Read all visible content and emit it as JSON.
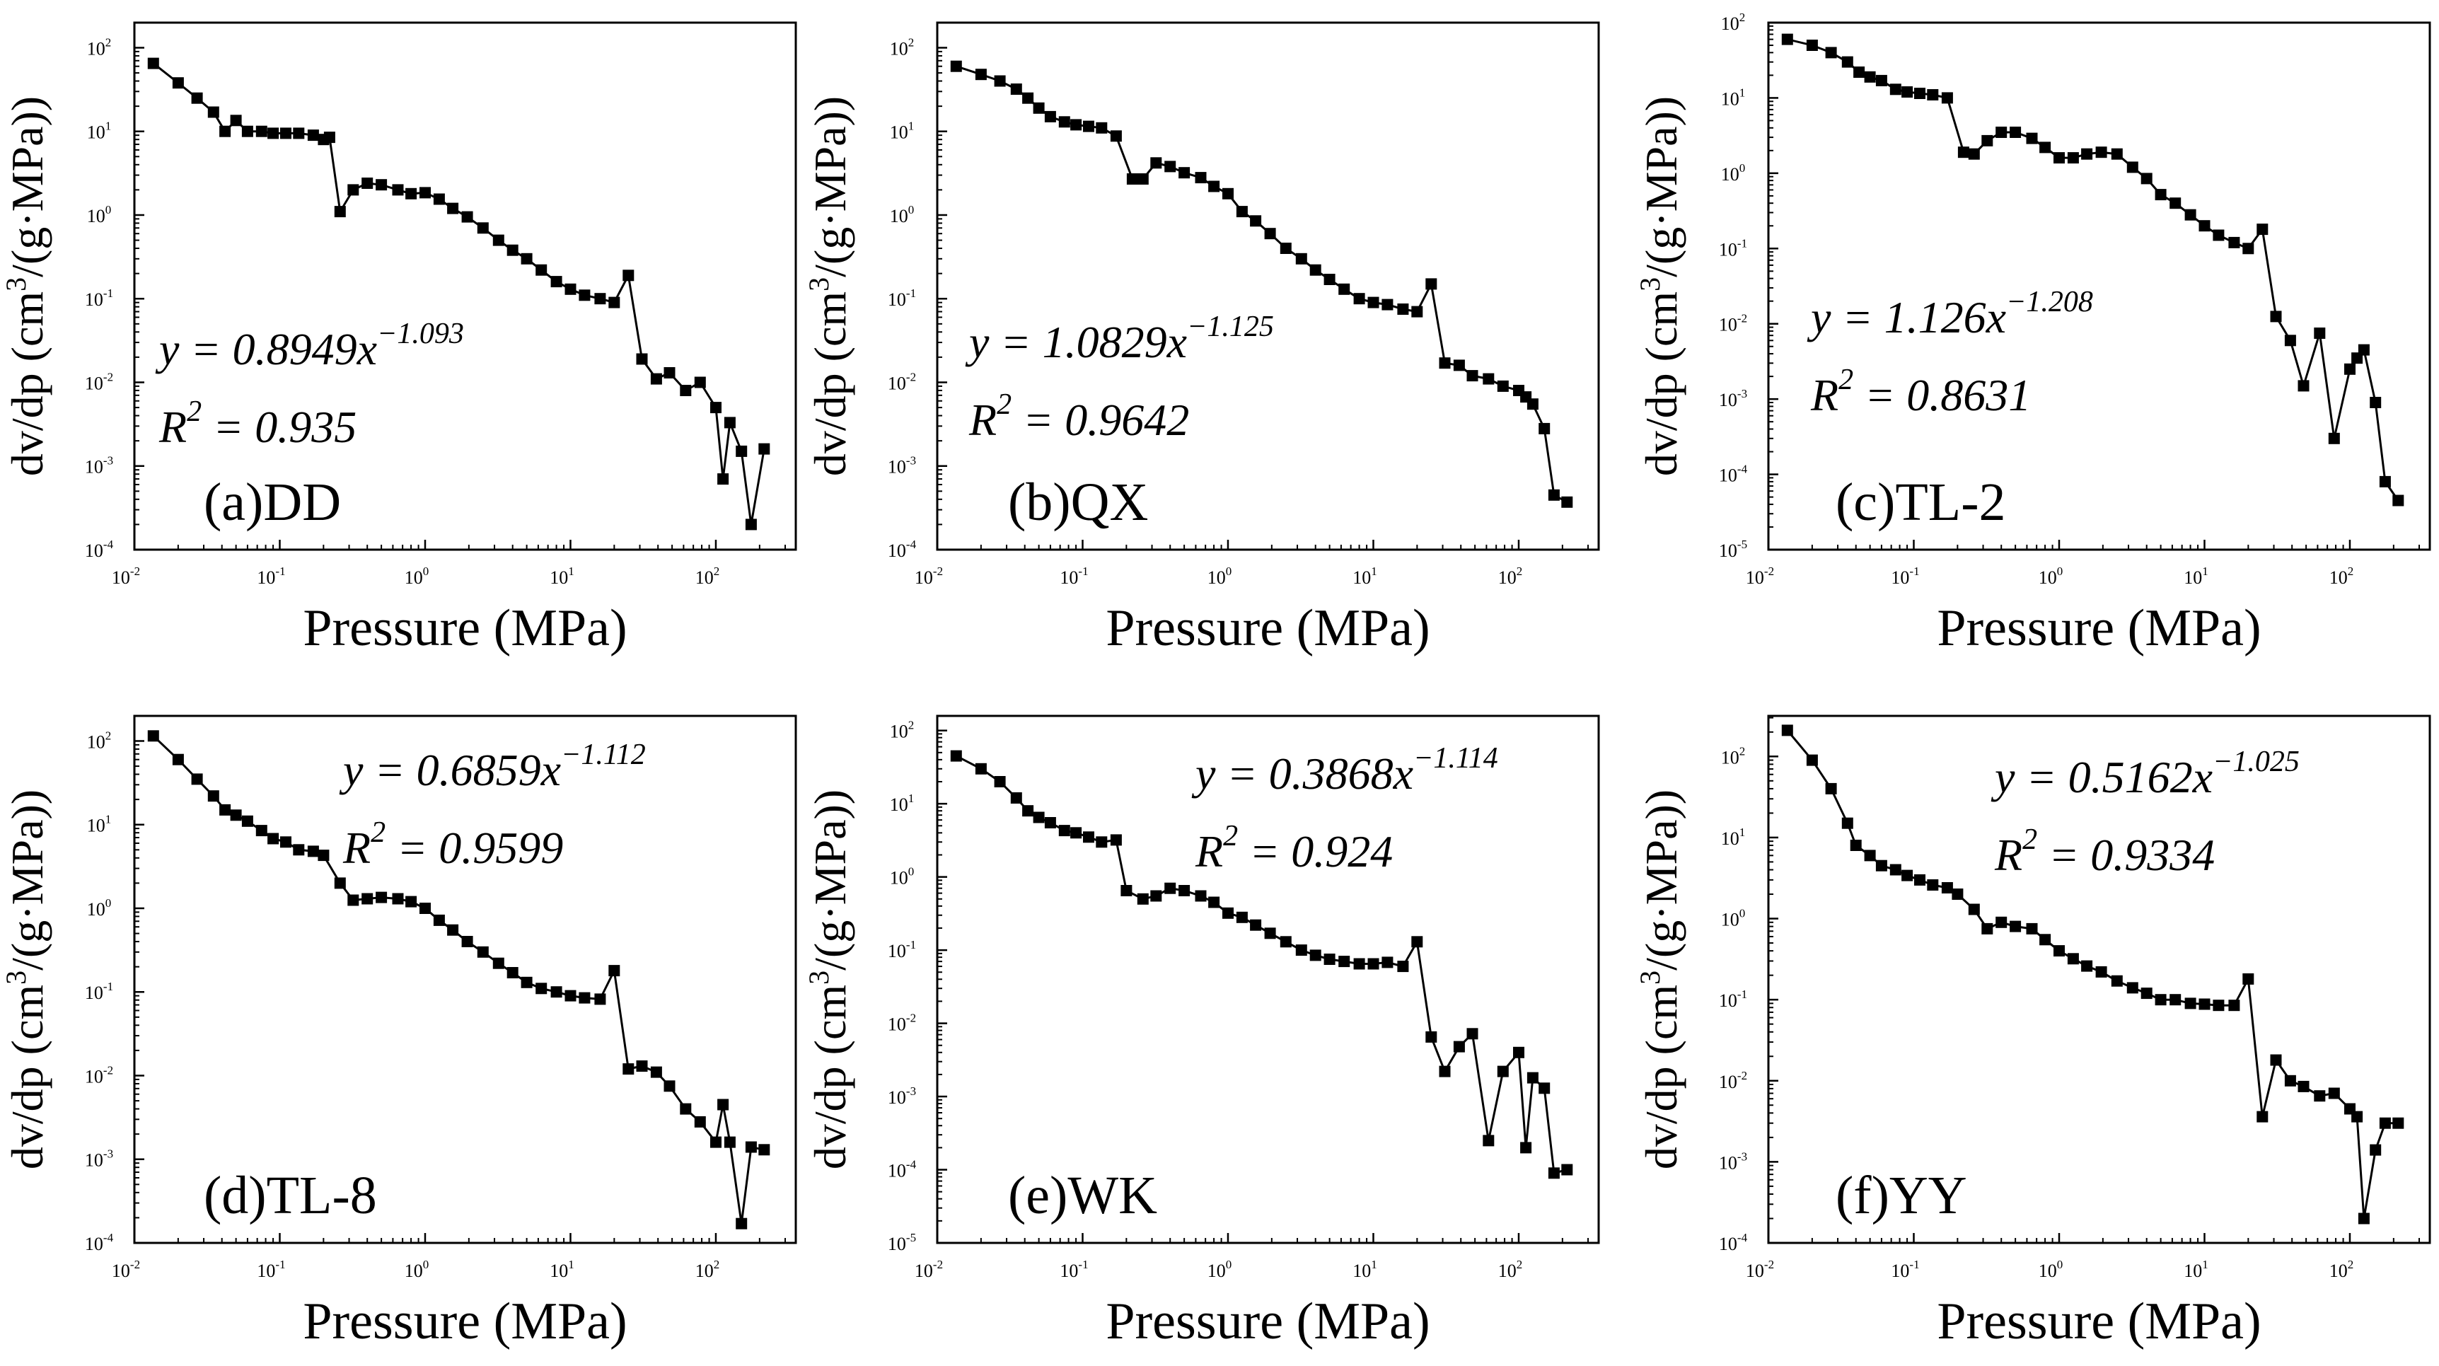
{
  "figure": {
    "type": "line-scatter, log-log, 2x3 panels",
    "marker": "square",
    "line_color": "#000000",
    "marker_color": "#000000",
    "background": "#ffffff"
  },
  "chart_data": [
    {
      "id": "a",
      "type": "line",
      "label": "(a)DD",
      "xlabel": "Pressure (MPa)",
      "ylabel_main": "dv/dp (cm",
      "ylabel_exp": "3",
      "ylabel_tail": "/(g·MPa))",
      "xscale": "log",
      "yscale": "log",
      "xlim_exp": [
        -2,
        2.55
      ],
      "ylim_exp": [
        -4,
        2.3
      ],
      "xticks_exp": [
        -2,
        -1,
        0,
        1,
        2
      ],
      "yticks_exp": [
        -4,
        -3,
        -2,
        -1,
        0,
        1,
        2
      ],
      "tick_base": "10",
      "equation": {
        "lhs": "y = ",
        "coef": "0.8949x",
        "exp": "−1.093"
      },
      "r2": {
        "lhs": "R",
        "exp": "2",
        "rhs": " = 0.935"
      },
      "x": [
        0.0135,
        0.02,
        0.027,
        0.035,
        0.042,
        0.05,
        0.06,
        0.075,
        0.09,
        0.11,
        0.135,
        0.17,
        0.2,
        0.22,
        0.26,
        0.32,
        0.4,
        0.5,
        0.65,
        0.8,
        1.0,
        1.25,
        1.55,
        1.95,
        2.5,
        3.2,
        4.0,
        5.0,
        6.3,
        8.0,
        10.0,
        12.5,
        16,
        20,
        25,
        31,
        39,
        48,
        62,
        78,
        100,
        112,
        125,
        150,
        175,
        215
      ],
      "y": [
        65,
        38,
        25,
        17,
        10,
        13.5,
        10,
        10,
        9.5,
        9.5,
        9.5,
        9.0,
        8.0,
        8.5,
        1.1,
        2.0,
        2.4,
        2.3,
        2.0,
        1.8,
        1.85,
        1.55,
        1.2,
        0.95,
        0.7,
        0.5,
        0.38,
        0.3,
        0.22,
        0.16,
        0.13,
        0.11,
        0.1,
        0.09,
        0.19,
        0.019,
        0.011,
        0.013,
        0.008,
        0.01,
        0.005,
        0.0007,
        0.0033,
        0.0015,
        0.0002,
        0.0016
      ]
    },
    {
      "id": "b",
      "type": "line",
      "label": "(b)QX",
      "xlabel": "Pressure (MPa)",
      "ylabel_main": "dv/dp (cm",
      "ylabel_exp": "3",
      "ylabel_tail": "/(g·MPa))",
      "xscale": "log",
      "yscale": "log",
      "xlim_exp": [
        -2,
        2.55
      ],
      "ylim_exp": [
        -4,
        2.3
      ],
      "xticks_exp": [
        -2,
        -1,
        0,
        1,
        2
      ],
      "yticks_exp": [
        -4,
        -3,
        -2,
        -1,
        0,
        1,
        2
      ],
      "tick_base": "10",
      "equation": {
        "lhs": "y = ",
        "coef": "1.0829x",
        "exp": "−1.125"
      },
      "r2": {
        "lhs": "R",
        "exp": "2",
        "rhs": " = 0.9642"
      },
      "x": [
        0.0135,
        0.02,
        0.027,
        0.035,
        0.042,
        0.05,
        0.06,
        0.075,
        0.09,
        0.11,
        0.135,
        0.17,
        0.22,
        0.26,
        0.32,
        0.4,
        0.5,
        0.65,
        0.8,
        1.0,
        1.25,
        1.55,
        1.95,
        2.5,
        3.2,
        4.0,
        5.0,
        6.3,
        8.0,
        10.0,
        12.5,
        16,
        20,
        25,
        31,
        39,
        48,
        62,
        78,
        100,
        112,
        125,
        150,
        175,
        215
      ],
      "y": [
        60,
        48,
        40,
        32,
        25,
        19,
        15,
        13,
        12,
        11.5,
        11,
        8.8,
        2.7,
        2.7,
        4.2,
        3.8,
        3.2,
        2.8,
        2.2,
        1.8,
        1.1,
        0.85,
        0.6,
        0.4,
        0.3,
        0.22,
        0.17,
        0.13,
        0.1,
        0.09,
        0.085,
        0.075,
        0.07,
        0.15,
        0.017,
        0.016,
        0.012,
        0.011,
        0.009,
        0.008,
        0.0067,
        0.0055,
        0.0028,
        0.00045,
        0.00037
      ]
    },
    {
      "id": "c",
      "type": "line",
      "label": "(c)TL-2",
      "xlabel": "Pressure (MPa)",
      "ylabel_main": "dv/dp (cm",
      "ylabel_exp": "3",
      "ylabel_tail": "/(g·MPa))",
      "xscale": "log",
      "yscale": "log",
      "xlim_exp": [
        -2,
        2.55
      ],
      "ylim_exp": [
        -5,
        2
      ],
      "xticks_exp": [
        -2,
        -1,
        0,
        1,
        2
      ],
      "yticks_exp": [
        -5,
        -4,
        -3,
        -2,
        -1,
        0,
        1,
        2
      ],
      "tick_base": "10",
      "equation": {
        "lhs": "y = ",
        "coef": "1.126x",
        "exp": "−1.208"
      },
      "r2": {
        "lhs": "R",
        "exp": "2",
        "rhs": " = 0.8631"
      },
      "x": [
        0.0135,
        0.02,
        0.027,
        0.035,
        0.042,
        0.05,
        0.06,
        0.075,
        0.09,
        0.11,
        0.135,
        0.17,
        0.22,
        0.26,
        0.32,
        0.4,
        0.5,
        0.65,
        0.8,
        1.0,
        1.25,
        1.55,
        1.95,
        2.5,
        3.2,
        4.0,
        5.0,
        6.3,
        8.0,
        10.0,
        12.5,
        16,
        20,
        25,
        31,
        39,
        48,
        62,
        78,
        100,
        112,
        125,
        150,
        175,
        215
      ],
      "y": [
        60,
        50,
        40,
        30,
        22,
        19,
        17,
        13,
        12,
        11.5,
        11,
        10,
        1.9,
        1.8,
        2.7,
        3.5,
        3.5,
        2.9,
        2.2,
        1.6,
        1.6,
        1.8,
        1.9,
        1.8,
        1.2,
        0.85,
        0.52,
        0.4,
        0.28,
        0.2,
        0.15,
        0.12,
        0.1,
        0.18,
        0.0125,
        0.006,
        0.0015,
        0.0075,
        0.0003,
        0.0025,
        0.0035,
        0.0045,
        0.0009,
        8e-05,
        4.5e-05
      ]
    },
    {
      "id": "d",
      "type": "line",
      "label": "(d)TL-8",
      "xlabel": "Pressure (MPa)",
      "ylabel_main": "dv/dp (cm",
      "ylabel_exp": "3",
      "ylabel_tail": "/(g·MPa))",
      "xscale": "log",
      "yscale": "log",
      "xlim_exp": [
        -2,
        2.55
      ],
      "ylim_exp": [
        -4,
        2.3
      ],
      "xticks_exp": [
        -2,
        -1,
        0,
        1,
        2
      ],
      "yticks_exp": [
        -4,
        -3,
        -2,
        -1,
        0,
        1,
        2
      ],
      "tick_base": "10",
      "equation": {
        "lhs": "y = ",
        "coef": "0.6859x",
        "exp": "−1.112"
      },
      "r2": {
        "lhs": "R",
        "exp": "2",
        "rhs": " = 0.9599"
      },
      "x": [
        0.0135,
        0.02,
        0.027,
        0.035,
        0.042,
        0.05,
        0.06,
        0.075,
        0.09,
        0.11,
        0.135,
        0.17,
        0.2,
        0.26,
        0.32,
        0.4,
        0.5,
        0.65,
        0.8,
        1.0,
        1.25,
        1.55,
        1.95,
        2.5,
        3.2,
        4.0,
        5.0,
        6.3,
        8.0,
        10.0,
        12.5,
        16,
        20,
        25,
        31,
        39,
        48,
        62,
        78,
        100,
        112,
        125,
        150,
        175,
        215
      ],
      "y": [
        115,
        60,
        35,
        22,
        15,
        13,
        11,
        8.5,
        6.8,
        6.2,
        5.0,
        4.8,
        4.3,
        2.0,
        1.25,
        1.3,
        1.35,
        1.3,
        1.2,
        1.0,
        0.72,
        0.55,
        0.4,
        0.3,
        0.22,
        0.17,
        0.13,
        0.11,
        0.1,
        0.09,
        0.085,
        0.082,
        0.18,
        0.012,
        0.013,
        0.011,
        0.0075,
        0.004,
        0.0028,
        0.0016,
        0.0045,
        0.0016,
        0.00017,
        0.0014,
        0.0013
      ]
    },
    {
      "id": "e",
      "type": "line",
      "label": "(e)WK",
      "xlabel": "Pressure (MPa)",
      "ylabel_main": "dv/dp (cm",
      "ylabel_exp": "3",
      "ylabel_tail": "/(g·MPa))",
      "xscale": "log",
      "yscale": "log",
      "xlim_exp": [
        -2,
        2.55
      ],
      "ylim_exp": [
        -5,
        2.2
      ],
      "xticks_exp": [
        -2,
        -1,
        0,
        1,
        2
      ],
      "yticks_exp": [
        -5,
        -4,
        -3,
        -2,
        -1,
        0,
        1,
        2
      ],
      "tick_base": "10",
      "equation": {
        "lhs": "y = ",
        "coef": "0.3868x",
        "exp": "−1.114"
      },
      "r2": {
        "lhs": "R",
        "exp": "2",
        "rhs": " = 0.924"
      },
      "x": [
        0.0135,
        0.02,
        0.027,
        0.035,
        0.042,
        0.05,
        0.06,
        0.075,
        0.09,
        0.11,
        0.135,
        0.17,
        0.2,
        0.26,
        0.32,
        0.4,
        0.5,
        0.65,
        0.8,
        1.0,
        1.25,
        1.55,
        1.95,
        2.5,
        3.2,
        4.0,
        5.0,
        6.3,
        8.0,
        10.0,
        12.5,
        16,
        20,
        25,
        31,
        39,
        48,
        62,
        78,
        100,
        112,
        125,
        150,
        175,
        215
      ],
      "y": [
        45,
        30,
        20,
        12,
        8,
        6.5,
        5.5,
        4.3,
        4.0,
        3.5,
        3.0,
        3.2,
        0.65,
        0.5,
        0.55,
        0.7,
        0.65,
        0.55,
        0.45,
        0.32,
        0.28,
        0.22,
        0.17,
        0.13,
        0.1,
        0.085,
        0.075,
        0.07,
        0.065,
        0.065,
        0.068,
        0.06,
        0.13,
        0.0065,
        0.0022,
        0.0048,
        0.0072,
        0.00025,
        0.0022,
        0.004,
        0.0002,
        0.0018,
        0.0013,
        9e-05,
        0.0001
      ]
    },
    {
      "id": "f",
      "type": "line",
      "label": "(f)YY",
      "xlabel": "Pressure (MPa)",
      "ylabel_main": "dv/dp (cm",
      "ylabel_exp": "3",
      "ylabel_tail": "/(g·MPa))",
      "xscale": "log",
      "yscale": "log",
      "xlim_exp": [
        -2,
        2.55
      ],
      "ylim_exp": [
        -4,
        2.5
      ],
      "xticks_exp": [
        -2,
        -1,
        0,
        1,
        2
      ],
      "yticks_exp": [
        -4,
        -3,
        -2,
        -1,
        0,
        1,
        2
      ],
      "tick_base": "10",
      "equation": {
        "lhs": "y = ",
        "coef": "0.5162x",
        "exp": "−1.025"
      },
      "r2": {
        "lhs": "R",
        "exp": "2",
        "rhs": " = 0.9334"
      },
      "x": [
        0.0135,
        0.02,
        0.027,
        0.035,
        0.04,
        0.05,
        0.06,
        0.075,
        0.09,
        0.11,
        0.135,
        0.17,
        0.2,
        0.26,
        0.32,
        0.4,
        0.5,
        0.65,
        0.8,
        1.0,
        1.25,
        1.55,
        1.95,
        2.5,
        3.2,
        4.0,
        5.0,
        6.3,
        8.0,
        10.0,
        12.5,
        16,
        20,
        25,
        31,
        39,
        48,
        62,
        78,
        100,
        112,
        125,
        150,
        175,
        215
      ],
      "y": [
        210,
        90,
        40,
        15,
        8,
        6,
        4.5,
        4.0,
        3.4,
        3.0,
        2.6,
        2.4,
        2.0,
        1.3,
        0.75,
        0.9,
        0.8,
        0.75,
        0.55,
        0.4,
        0.32,
        0.26,
        0.22,
        0.17,
        0.14,
        0.12,
        0.1,
        0.1,
        0.09,
        0.088,
        0.085,
        0.085,
        0.18,
        0.0036,
        0.018,
        0.01,
        0.0085,
        0.0065,
        0.007,
        0.0045,
        0.0036,
        0.0002,
        0.0014,
        0.003,
        0.003
      ]
    }
  ]
}
